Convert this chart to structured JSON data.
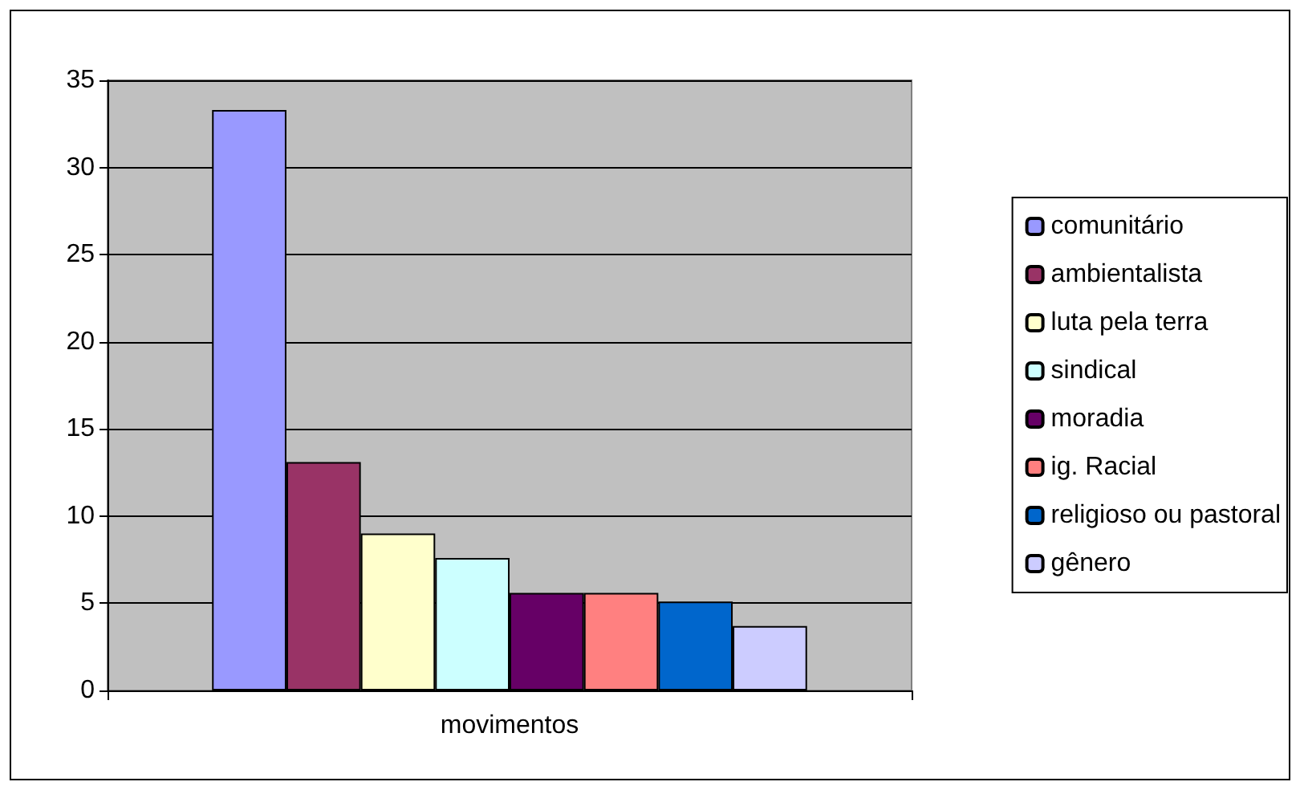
{
  "chart_data": {
    "type": "bar",
    "categories": [
      "movimentos"
    ],
    "series": [
      {
        "name": "comunitário",
        "color": "#9999ff",
        "values": [
          33.3
        ]
      },
      {
        "name": "ambientalista",
        "color": "#993366",
        "values": [
          13.1
        ]
      },
      {
        "name": "luta pela terra",
        "color": "#ffffcc",
        "values": [
          9.0
        ]
      },
      {
        "name": "sindical",
        "color": "#ccffff",
        "values": [
          7.6
        ]
      },
      {
        "name": "moradia",
        "color": "#660066",
        "values": [
          5.6
        ]
      },
      {
        "name": "ig. Racial",
        "color": "#ff8080",
        "values": [
          5.6
        ]
      },
      {
        "name": "religioso ou pastoral",
        "color": "#0066cc",
        "values": [
          5.1
        ]
      },
      {
        "name": "gênero",
        "color": "#ccccff",
        "values": [
          3.7
        ]
      }
    ],
    "ylim": [
      0,
      35
    ],
    "yticks": [
      0,
      5,
      10,
      15,
      20,
      25,
      30,
      35
    ],
    "grid": "y",
    "legend": "right"
  }
}
